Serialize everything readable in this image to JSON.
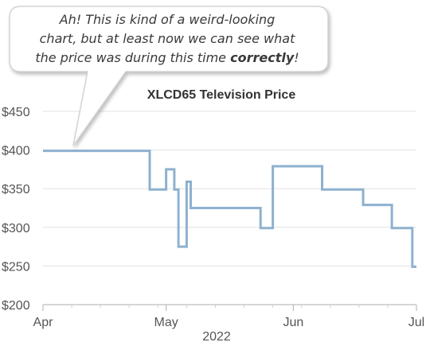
{
  "callout": {
    "lines": [
      [
        {
          "text": "Ah! This is kind of a weird-looking"
        }
      ],
      [
        {
          "text": "chart, but at least now we can see what"
        }
      ],
      [
        {
          "text": "the price was during this time "
        },
        {
          "text": "correctly",
          "bold": true
        },
        {
          "text": "!"
        }
      ]
    ]
  },
  "chart_data": {
    "type": "line",
    "step": true,
    "title": "XLCD65 Television Price",
    "xlabel": "2022",
    "ylabel": "",
    "ylim": [
      200,
      450
    ],
    "yticks": [
      200,
      250,
      300,
      350,
      400,
      450
    ],
    "ytick_labels": [
      "$200",
      "$250",
      "$300",
      "$350",
      "$400",
      "$450"
    ],
    "xlim": [
      "2022-04-01",
      "2022-07-01"
    ],
    "xticks": [
      "2022-04-01",
      "2022-05-01",
      "2022-06-01",
      "2022-07-01"
    ],
    "xtick_labels": [
      "Apr",
      "May",
      "Jun",
      "Jul"
    ],
    "grid": "horizontal",
    "line_color": "#8eb1cf",
    "series": [
      {
        "points": [
          {
            "x": "2022-04-01",
            "y": 399
          },
          {
            "x": "2022-04-27",
            "y": 349
          },
          {
            "x": "2022-05-01",
            "y": 375
          },
          {
            "x": "2022-05-03",
            "y": 349
          },
          {
            "x": "2022-05-04",
            "y": 275
          },
          {
            "x": "2022-05-06",
            "y": 359
          },
          {
            "x": "2022-05-07",
            "y": 325
          },
          {
            "x": "2022-05-24",
            "y": 299
          },
          {
            "x": "2022-05-27",
            "y": 379
          },
          {
            "x": "2022-06-08",
            "y": 349
          },
          {
            "x": "2022-06-18",
            "y": 329
          },
          {
            "x": "2022-06-25",
            "y": 299
          },
          {
            "x": "2022-06-30",
            "y": 249
          },
          {
            "x": "2022-07-01",
            "y": 249
          }
        ]
      }
    ]
  }
}
